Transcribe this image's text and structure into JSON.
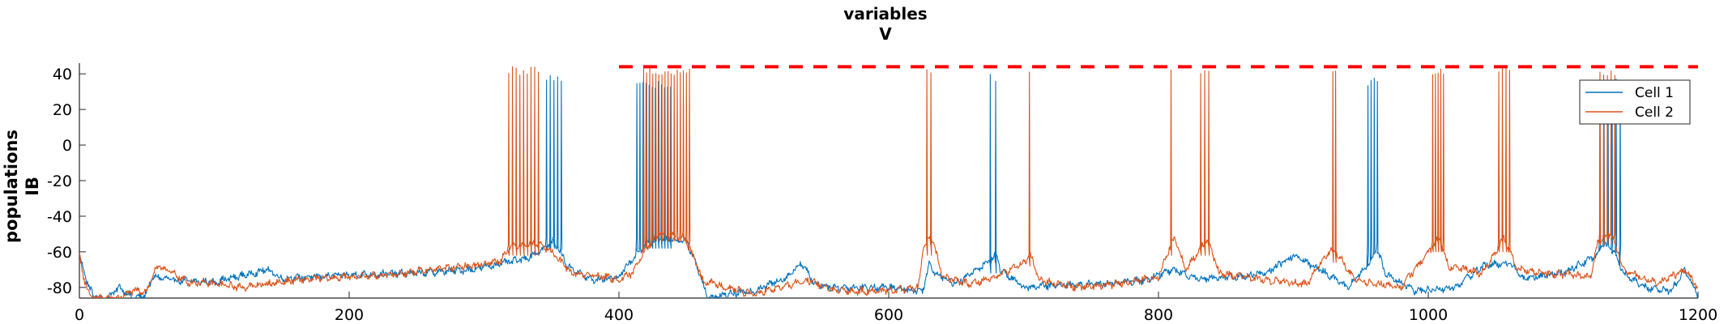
{
  "chart_data": {
    "type": "line",
    "title": [
      "variables",
      "V"
    ],
    "ylabel": [
      "populations",
      "IB"
    ],
    "xlabel": "",
    "xlim": [
      0,
      1200
    ],
    "ylim": [
      -86,
      46
    ],
    "xticks": [
      0,
      200,
      400,
      600,
      800,
      1000,
      1200
    ],
    "yticks": [
      -80,
      -60,
      -40,
      -20,
      0,
      20,
      40
    ],
    "grid": false,
    "legend_position": "top-right",
    "threshold": {
      "y": 44,
      "x_start": 400,
      "x_end": 1200,
      "color": "#ff0000",
      "style": "dashed"
    },
    "series": [
      {
        "name": "Cell 1",
        "color": "#0072BD",
        "baseline": [
          [
            0,
            -62
          ],
          [
            5,
            -75
          ],
          [
            10,
            -85
          ],
          [
            20,
            -86
          ],
          [
            30,
            -80
          ],
          [
            40,
            -86
          ],
          [
            48,
            -85
          ],
          [
            55,
            -74
          ],
          [
            70,
            -76
          ],
          [
            100,
            -77
          ],
          [
            140,
            -70
          ],
          [
            150,
            -75
          ],
          [
            200,
            -73
          ],
          [
            250,
            -72
          ],
          [
            290,
            -70
          ],
          [
            310,
            -67
          ],
          [
            330,
            -64
          ],
          [
            345,
            -58
          ],
          [
            352,
            -54
          ],
          [
            362,
            -68
          ],
          [
            380,
            -76
          ],
          [
            400,
            -74
          ],
          [
            408,
            -66
          ],
          [
            418,
            -57
          ],
          [
            430,
            -52
          ],
          [
            450,
            -54
          ],
          [
            458,
            -68
          ],
          [
            466,
            -86
          ],
          [
            480,
            -84
          ],
          [
            500,
            -82
          ],
          [
            525,
            -74
          ],
          [
            535,
            -66
          ],
          [
            545,
            -78
          ],
          [
            560,
            -80
          ],
          [
            580,
            -80
          ],
          [
            600,
            -80
          ],
          [
            625,
            -82
          ],
          [
            630,
            -67
          ],
          [
            635,
            -72
          ],
          [
            650,
            -78
          ],
          [
            680,
            -62
          ],
          [
            683,
            -70
          ],
          [
            700,
            -80
          ],
          [
            720,
            -79
          ],
          [
            760,
            -78
          ],
          [
            790,
            -76
          ],
          [
            810,
            -70
          ],
          [
            830,
            -75
          ],
          [
            860,
            -74
          ],
          [
            880,
            -72
          ],
          [
            900,
            -62
          ],
          [
            920,
            -70
          ],
          [
            940,
            -80
          ],
          [
            955,
            -68
          ],
          [
            962,
            -58
          ],
          [
            968,
            -72
          ],
          [
            990,
            -82
          ],
          [
            1020,
            -80
          ],
          [
            1040,
            -68
          ],
          [
            1060,
            -66
          ],
          [
            1070,
            -75
          ],
          [
            1100,
            -72
          ],
          [
            1125,
            -62
          ],
          [
            1130,
            -55
          ],
          [
            1138,
            -60
          ],
          [
            1145,
            -72
          ],
          [
            1160,
            -80
          ],
          [
            1180,
            -82
          ],
          [
            1190,
            -70
          ],
          [
            1200,
            -84
          ]
        ],
        "bursts": [
          {
            "start": 346,
            "end": 357,
            "spikes": 5,
            "peak": 40,
            "trough": -52
          },
          {
            "start": 413,
            "end": 438,
            "spikes": 12,
            "peak": 36,
            "trough": -52
          },
          {
            "start": 675,
            "end": 679,
            "spikes": 2,
            "peak": 40,
            "trough": -66
          },
          {
            "start": 955,
            "end": 962,
            "spikes": 4,
            "peak": 38,
            "trough": -55
          },
          {
            "start": 1127,
            "end": 1142,
            "spikes": 6,
            "peak": 38,
            "trough": -50
          }
        ]
      },
      {
        "name": "Cell 2",
        "color": "#D95319",
        "baseline": [
          [
            0,
            -62
          ],
          [
            3,
            -74
          ],
          [
            8,
            -85
          ],
          [
            15,
            -86
          ],
          [
            30,
            -86
          ],
          [
            40,
            -82
          ],
          [
            50,
            -82
          ],
          [
            55,
            -72
          ],
          [
            60,
            -68
          ],
          [
            80,
            -77
          ],
          [
            100,
            -78
          ],
          [
            120,
            -80
          ],
          [
            160,
            -76
          ],
          [
            200,
            -74
          ],
          [
            230,
            -73
          ],
          [
            260,
            -70
          ],
          [
            290,
            -68
          ],
          [
            312,
            -65
          ],
          [
            318,
            -58
          ],
          [
            325,
            -56
          ],
          [
            340,
            -55
          ],
          [
            350,
            -60
          ],
          [
            365,
            -72
          ],
          [
            390,
            -74
          ],
          [
            400,
            -76
          ],
          [
            410,
            -72
          ],
          [
            418,
            -60
          ],
          [
            430,
            -50
          ],
          [
            448,
            -52
          ],
          [
            455,
            -62
          ],
          [
            462,
            -76
          ],
          [
            480,
            -80
          ],
          [
            500,
            -84
          ],
          [
            520,
            -80
          ],
          [
            540,
            -76
          ],
          [
            560,
            -82
          ],
          [
            600,
            -82
          ],
          [
            622,
            -80
          ],
          [
            626,
            -56
          ],
          [
            632,
            -52
          ],
          [
            640,
            -74
          ],
          [
            660,
            -78
          ],
          [
            680,
            -74
          ],
          [
            700,
            -66
          ],
          [
            705,
            -62
          ],
          [
            712,
            -76
          ],
          [
            740,
            -80
          ],
          [
            770,
            -78
          ],
          [
            800,
            -74
          ],
          [
            808,
            -58
          ],
          [
            812,
            -52
          ],
          [
            820,
            -70
          ],
          [
            830,
            -60
          ],
          [
            836,
            -52
          ],
          [
            845,
            -72
          ],
          [
            880,
            -76
          ],
          [
            910,
            -78
          ],
          [
            928,
            -58
          ],
          [
            934,
            -62
          ],
          [
            945,
            -76
          ],
          [
            980,
            -80
          ],
          [
            1000,
            -60
          ],
          [
            1008,
            -52
          ],
          [
            1015,
            -68
          ],
          [
            1040,
            -72
          ],
          [
            1050,
            -60
          ],
          [
            1056,
            -52
          ],
          [
            1066,
            -70
          ],
          [
            1090,
            -72
          ],
          [
            1120,
            -74
          ],
          [
            1126,
            -54
          ],
          [
            1136,
            -50
          ],
          [
            1145,
            -70
          ],
          [
            1170,
            -78
          ],
          [
            1190,
            -70
          ],
          [
            1200,
            -80
          ]
        ],
        "bursts": [
          {
            "start": 318,
            "end": 340,
            "spikes": 9,
            "peak": 44,
            "trough": -56
          },
          {
            "start": 418,
            "end": 452,
            "spikes": 16,
            "peak": 44,
            "trough": -48
          },
          {
            "start": 628,
            "end": 631,
            "spikes": 2,
            "peak": 44,
            "trough": -56
          },
          {
            "start": 704,
            "end": 704,
            "spikes": 1,
            "peak": 44,
            "trough": -62
          },
          {
            "start": 809,
            "end": 809,
            "spikes": 1,
            "peak": 44,
            "trough": -56
          },
          {
            "start": 831,
            "end": 837,
            "spikes": 3,
            "peak": 44,
            "trough": -56
          },
          {
            "start": 929,
            "end": 931,
            "spikes": 2,
            "peak": 44,
            "trough": -60
          },
          {
            "start": 1003,
            "end": 1011,
            "spikes": 5,
            "peak": 44,
            "trough": -54
          },
          {
            "start": 1052,
            "end": 1060,
            "spikes": 4,
            "peak": 44,
            "trough": -54
          },
          {
            "start": 1127,
            "end": 1138,
            "spikes": 5,
            "peak": 44,
            "trough": -50
          }
        ]
      }
    ]
  }
}
